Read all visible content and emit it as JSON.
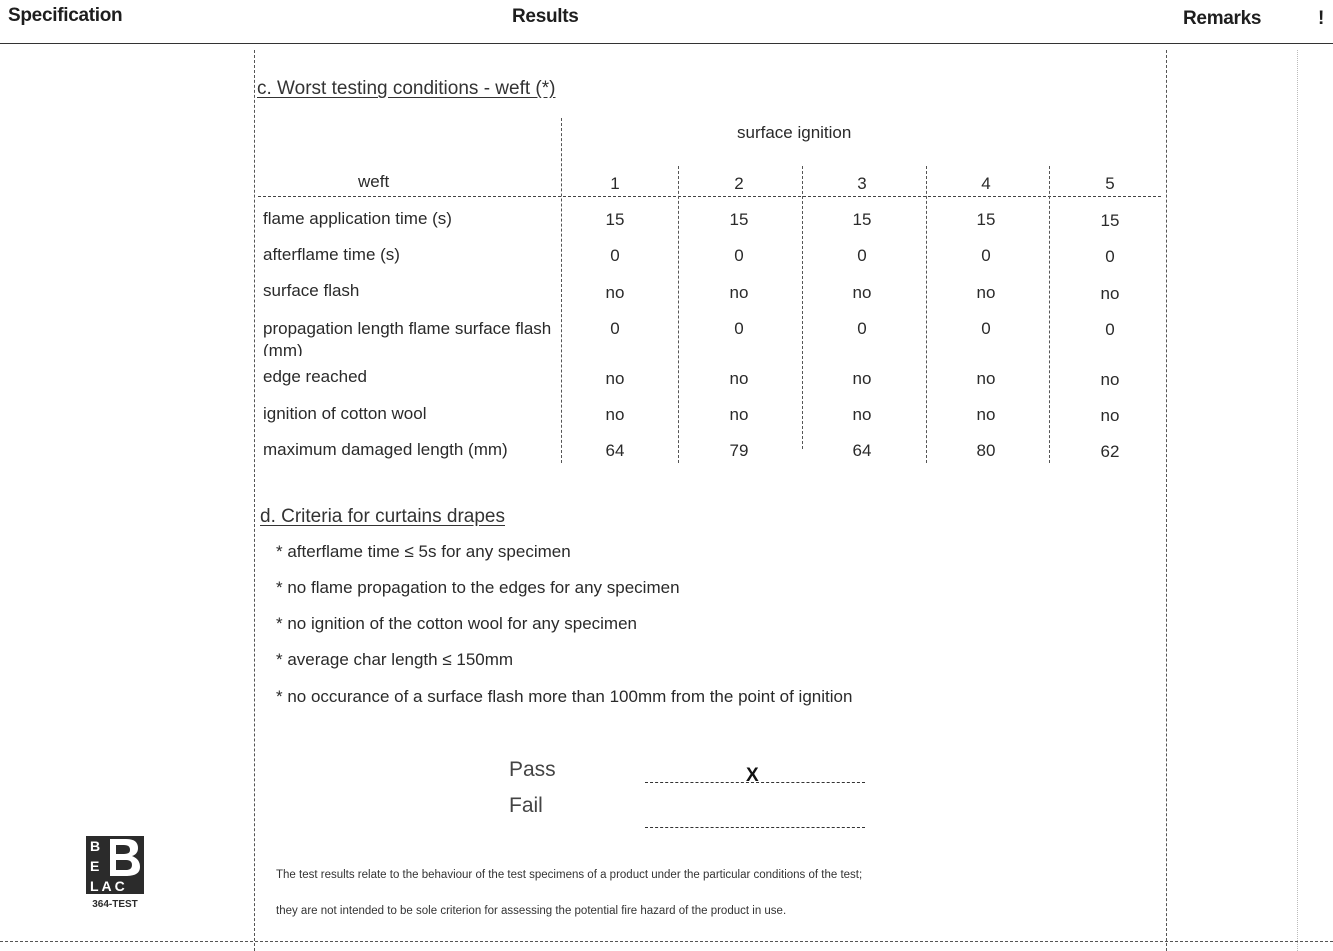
{
  "header": {
    "specification": "Specification",
    "results": "Results",
    "remarks": "Remarks",
    "mark": "!"
  },
  "section_c": {
    "title": "c. Worst testing conditions - weft (*)",
    "group_header": "surface ignition",
    "row_header": "weft",
    "columns": [
      "1",
      "2",
      "3",
      "4",
      "5"
    ],
    "rows": [
      {
        "label": "flame application time (s)",
        "values": [
          "15",
          "15",
          "15",
          "15",
          "15"
        ]
      },
      {
        "label": "afterflame time (s)",
        "values": [
          "0",
          "0",
          "0",
          "0",
          "0"
        ]
      },
      {
        "label": "surface flash",
        "values": [
          "no",
          "no",
          "no",
          "no",
          "no"
        ]
      },
      {
        "label": "propagation length flame surface flash (mm)",
        "values": [
          "0",
          "0",
          "0",
          "0",
          "0"
        ]
      },
      {
        "label": "edge reached",
        "values": [
          "no",
          "no",
          "no",
          "no",
          "no"
        ]
      },
      {
        "label": "ignition of cotton wool",
        "values": [
          "no",
          "no",
          "no",
          "no",
          "no"
        ]
      },
      {
        "label": "maximum damaged length (mm)",
        "values": [
          "64",
          "79",
          "64",
          "80",
          "62"
        ]
      }
    ]
  },
  "section_d": {
    "title": "d. Criteria for curtains drapes",
    "criteria": [
      "* afterflame time ≤ 5s for any specimen",
      "* no flame propagation to the edges for any specimen",
      "* no ignition of the cotton wool for any specimen",
      "* average char length ≤ 150mm",
      "* no occurance of a surface flash more than 100mm from the point of ignition"
    ]
  },
  "verdict": {
    "pass_label": "Pass",
    "fail_label": "Fail",
    "pass_mark": "X",
    "fail_mark": ""
  },
  "footer": {
    "line1": "The test results relate to the behaviour of the test specimens of a product under the particular conditions of the test;",
    "line2": "they are not intended to be sole criterion for assessing the potential fire hazard of the product in use."
  },
  "logo": {
    "letters": [
      "B",
      "E",
      "L",
      "A",
      "C"
    ],
    "code": "364-TEST"
  },
  "colors": {
    "text": "#222222",
    "rule": "#333333",
    "logo": "#2b2b2b"
  }
}
